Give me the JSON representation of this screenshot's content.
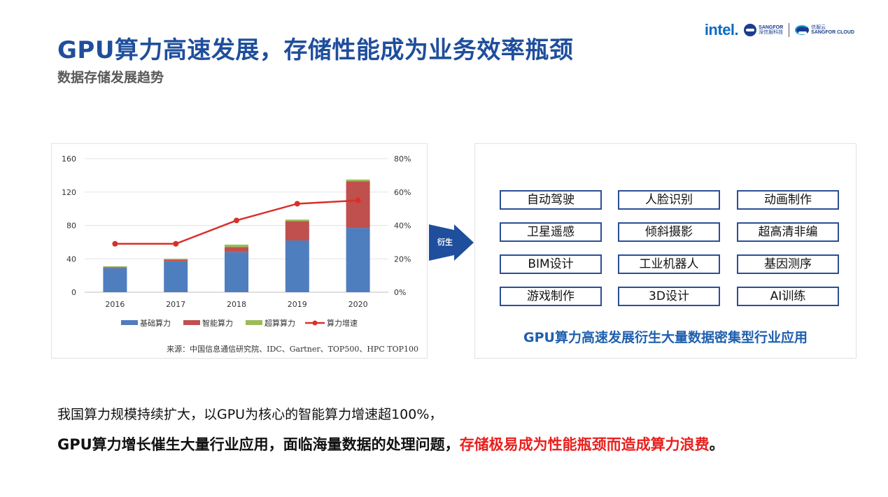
{
  "header": {
    "title": "GPU算力高速发展，存储性能成为业务效率瓶颈",
    "subtitle": "数据存储发展趋势"
  },
  "logos": {
    "intel": "intel.",
    "sangfor_en": "SANGFOR",
    "sangfor_cn": "深信服科技",
    "cloud_cn": "信服云",
    "cloud_en": "SANGFOR CLOUD"
  },
  "chart_data": {
    "type": "bar",
    "stacked": true,
    "categories": [
      "2016",
      "2017",
      "2018",
      "2019",
      "2020"
    ],
    "series": [
      {
        "name": "基础算力",
        "values": [
          29,
          37,
          48,
          62,
          77
        ],
        "color": "#4f7ebf"
      },
      {
        "name": "智能算力",
        "values": [
          1,
          2,
          6,
          23,
          56
        ],
        "color": "#c0504d"
      },
      {
        "name": "超算算力",
        "values": [
          1,
          1,
          3,
          2,
          2
        ],
        "color": "#9bbb59"
      }
    ],
    "line_series": {
      "name": "算力增速",
      "values": [
        29,
        29,
        43,
        53,
        55
      ],
      "color": "#d9302a",
      "axis": "right"
    },
    "ylim": [
      0,
      160
    ],
    "yticks": [
      "0",
      "40",
      "80",
      "120",
      "160"
    ],
    "y2lim": [
      0,
      80
    ],
    "y2ticks": [
      "0%",
      "20%",
      "40%",
      "60%",
      "80%"
    ],
    "legend_position": "bottom",
    "grid": true,
    "source": "来源：中国信息通信研究院、IDC、Gartner、TOP500、HPC TOP100"
  },
  "arrow_label": "衍生",
  "apps": {
    "items": [
      "自动驾驶",
      "人脸识别",
      "动画制作",
      "卫星遥感",
      "倾斜摄影",
      "超高清非编",
      "BIM设计",
      "工业机器人",
      "基因测序",
      "游戏制作",
      "3D设计",
      "AI训练"
    ],
    "caption": "GPU算力高速发展衍生大量数据密集型行业应用"
  },
  "footer": {
    "line1": "我国算力规模持续扩大，以GPU为核心的智能算力增速超100%，",
    "line2_black": "GPU算力增长催生大量行业应用，面临海量数据的处理问题，",
    "line2_red": "存储极易成为性能瓶颈而造成算力浪费",
    "line2_end": "。"
  }
}
